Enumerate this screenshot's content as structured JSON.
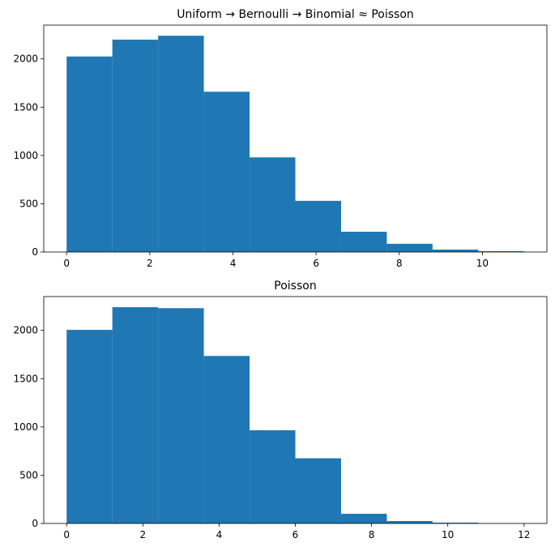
{
  "figure": {
    "colors": {
      "bar": "#1f77b4"
    }
  },
  "chart_data": [
    {
      "type": "bar",
      "title": "Uniform → Bernoulli → Binomial ≈ Poisson",
      "xlabel": "",
      "ylabel": "",
      "bin_edges": [
        0,
        1.1,
        2.2,
        3.3,
        4.4,
        5.5,
        6.6,
        7.7,
        8.8,
        9.9,
        11
      ],
      "values": [
        2025,
        2200,
        2240,
        1660,
        980,
        530,
        210,
        85,
        25,
        8
      ],
      "xlim": [
        -0.55,
        11.55
      ],
      "ylim": [
        0,
        2350
      ],
      "xticks": [
        0,
        2,
        4,
        6,
        8,
        10
      ],
      "xtick_labels": [
        "0",
        "2",
        "4",
        "6",
        "8",
        "10"
      ],
      "yticks": [
        0,
        500,
        1000,
        1500,
        2000
      ],
      "ytick_labels": [
        "0",
        "500",
        "1000",
        "1500",
        "2000"
      ],
      "grid": false
    },
    {
      "type": "bar",
      "title": "Poisson",
      "xlabel": "",
      "ylabel": "",
      "bin_edges": [
        0,
        1.2,
        2.4,
        3.6,
        4.8,
        6.0,
        7.2,
        8.4,
        9.6,
        10.8,
        12
      ],
      "values": [
        2005,
        2240,
        2230,
        1735,
        965,
        675,
        100,
        25,
        8,
        2
      ],
      "xlim": [
        -0.6,
        12.6
      ],
      "ylim": [
        0,
        2350
      ],
      "xticks": [
        0,
        2,
        4,
        6,
        8,
        10,
        12
      ],
      "xtick_labels": [
        "0",
        "2",
        "4",
        "6",
        "8",
        "10",
        "12"
      ],
      "yticks": [
        0,
        500,
        1000,
        1500,
        2000
      ],
      "ytick_labels": [
        "0",
        "500",
        "1000",
        "1500",
        "2000"
      ],
      "grid": false
    }
  ]
}
